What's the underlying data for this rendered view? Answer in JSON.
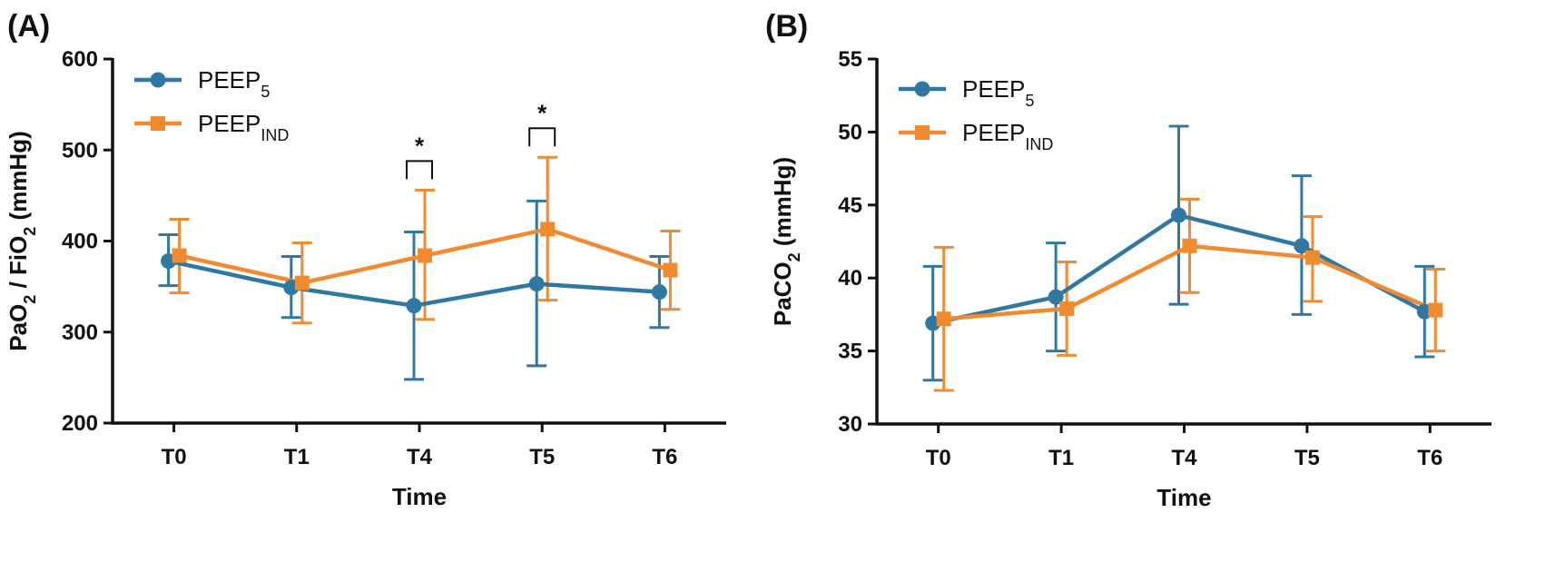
{
  "colors": {
    "peep5": "#2E78A3",
    "peepind": "#F28A30",
    "axis": "#111111"
  },
  "chart_data": [
    {
      "panel_label": "(A)",
      "type": "line",
      "categories": [
        "T0",
        "T1",
        "T4",
        "T5",
        "T6"
      ],
      "xlabel": "Time",
      "ylabel": {
        "parts": [
          "PaO",
          "2",
          " / FiO",
          "2",
          " (mmHg)"
        ]
      },
      "ylim": [
        200,
        600
      ],
      "yticks": [
        200,
        300,
        400,
        500,
        600
      ],
      "legend_position": "top-left",
      "series": [
        {
          "name": "PEEP",
          "name_sub": "5",
          "marker": "circle",
          "color_key": "peep5",
          "values": [
            378,
            349,
            329,
            353,
            344
          ],
          "err_low": [
            351,
            316,
            248,
            263,
            305
          ],
          "err_high": [
            407,
            383,
            410,
            444,
            383
          ]
        },
        {
          "name": "PEEP",
          "name_sub": "IND",
          "marker": "square",
          "color_key": "peepind",
          "values": [
            384,
            354,
            384,
            413,
            368
          ],
          "err_low": [
            343,
            310,
            314,
            335,
            325
          ],
          "err_high": [
            424,
            398,
            456,
            492,
            411
          ]
        }
      ],
      "annotations": [
        {
          "category": "T4",
          "text": "*"
        },
        {
          "category": "T5",
          "text": "*"
        }
      ]
    },
    {
      "panel_label": "(B)",
      "type": "line",
      "categories": [
        "T0",
        "T1",
        "T4",
        "T5",
        "T6"
      ],
      "xlabel": "Time",
      "ylabel": {
        "parts": [
          "PaCO",
          "2",
          " (mmHg)"
        ]
      },
      "ylim": [
        30,
        55
      ],
      "yticks": [
        30,
        35,
        40,
        45,
        50,
        55
      ],
      "legend_position": "top-left",
      "series": [
        {
          "name": "PEEP",
          "name_sub": "5",
          "marker": "circle",
          "color_key": "peep5",
          "values": [
            36.9,
            38.7,
            44.3,
            42.2,
            37.7
          ],
          "err_low": [
            33.0,
            35.0,
            38.2,
            37.5,
            34.6
          ],
          "err_high": [
            40.8,
            42.4,
            50.4,
            47.0,
            40.8
          ]
        },
        {
          "name": "PEEP",
          "name_sub": "IND",
          "marker": "square",
          "color_key": "peepind",
          "values": [
            37.2,
            37.9,
            42.2,
            41.4,
            37.8
          ],
          "err_low": [
            32.3,
            34.7,
            39.0,
            38.4,
            35.0
          ],
          "err_high": [
            42.1,
            41.1,
            45.4,
            44.2,
            40.6
          ]
        }
      ],
      "annotations": []
    }
  ]
}
